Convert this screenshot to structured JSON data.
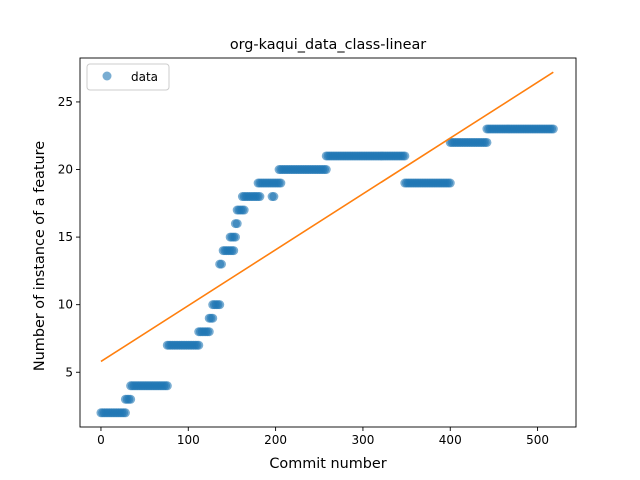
{
  "chart_data": {
    "type": "scatter",
    "title": "org-kaqui_data_class-linear",
    "xlabel": "Commit number",
    "ylabel": "Number of instance of a feature",
    "xlim": [
      -24,
      544
    ],
    "ylim": [
      0.95,
      28.25
    ],
    "xticks": [
      0,
      100,
      200,
      300,
      400,
      500
    ],
    "yticks": [
      5,
      10,
      15,
      20,
      25
    ],
    "legend": {
      "position": "upper-left",
      "entries": [
        "data"
      ]
    },
    "colors": {
      "points": "#1f77b4",
      "fit": "#ff7f0e"
    },
    "series": [
      {
        "name": "data",
        "kind": "scatter",
        "segments": [
          {
            "x_start": 0,
            "x_end": 28,
            "y": 2
          },
          {
            "x_start": 28,
            "x_end": 34,
            "y": 3
          },
          {
            "x_start": 34,
            "x_end": 76,
            "y": 4
          },
          {
            "x_start": 76,
            "x_end": 112,
            "y": 7
          },
          {
            "x_start": 112,
            "x_end": 124,
            "y": 8
          },
          {
            "x_start": 124,
            "x_end": 128,
            "y": 9
          },
          {
            "x_start": 128,
            "x_end": 136,
            "y": 10
          },
          {
            "x_start": 136,
            "x_end": 138,
            "y": 13
          },
          {
            "x_start": 140,
            "x_end": 152,
            "y": 14
          },
          {
            "x_start": 148,
            "x_end": 154,
            "y": 15
          },
          {
            "x_start": 154,
            "x_end": 156,
            "y": 16
          },
          {
            "x_start": 156,
            "x_end": 164,
            "y": 17
          },
          {
            "x_start": 162,
            "x_end": 182,
            "y": 18
          },
          {
            "x_start": 180,
            "x_end": 196,
            "y": 19
          },
          {
            "x_start": 196,
            "x_end": 198,
            "y": 18
          },
          {
            "x_start": 198,
            "x_end": 206,
            "y": 19
          },
          {
            "x_start": 204,
            "x_end": 258,
            "y": 20
          },
          {
            "x_start": 258,
            "x_end": 348,
            "y": 21
          },
          {
            "x_start": 348,
            "x_end": 400,
            "y": 19
          },
          {
            "x_start": 400,
            "x_end": 442,
            "y": 22
          },
          {
            "x_start": 442,
            "x_end": 518,
            "y": 23
          }
        ]
      },
      {
        "name": "",
        "kind": "line",
        "points": [
          [
            0,
            5.8
          ],
          [
            518,
            27.2
          ]
        ]
      }
    ]
  }
}
